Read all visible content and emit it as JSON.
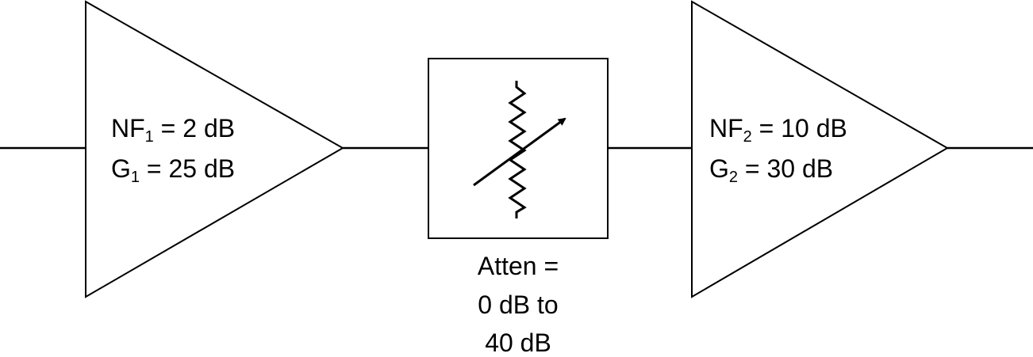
{
  "amp1": {
    "nf_prefix": "NF",
    "nf_sub": "1",
    "nf_value": " = 2 dB",
    "g_prefix": "G",
    "g_sub": "1",
    "g_value": " = 25 dB"
  },
  "attenuator": {
    "line1": "Atten =",
    "line2": "0 dB to",
    "line3": "40 dB"
  },
  "amp2": {
    "nf_prefix": "NF",
    "nf_sub": "2",
    "nf_value": " = 10 dB",
    "g_prefix": "G",
    "g_sub": "2",
    "g_value": " = 30 dB"
  },
  "colors": {
    "stroke": "#000000",
    "background": "#ffffff"
  },
  "icons": {
    "attenuator_symbol": "variable-resistor-icon"
  }
}
